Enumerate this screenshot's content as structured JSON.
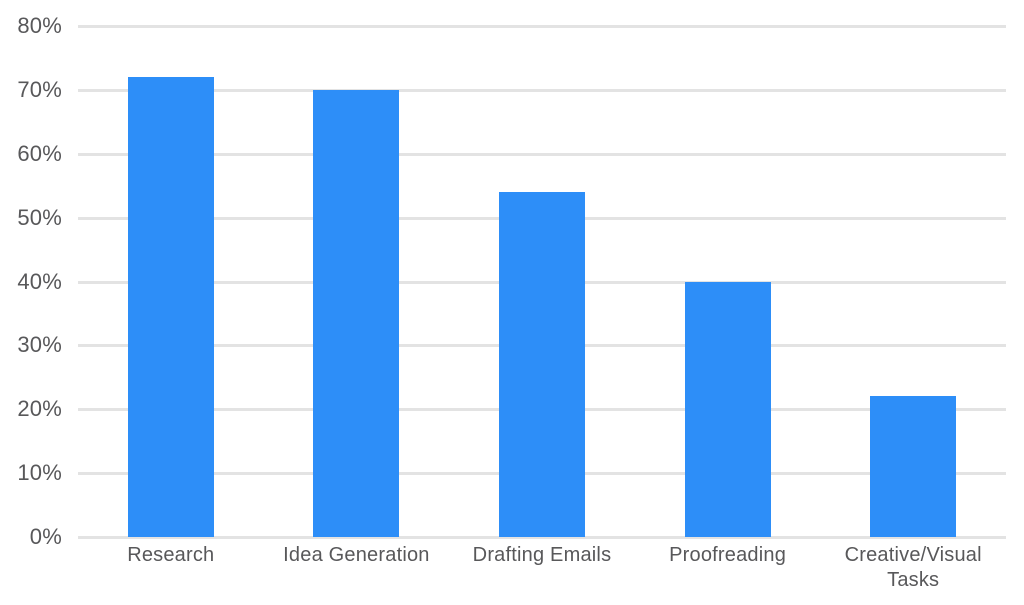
{
  "chart_data": {
    "type": "bar",
    "title": "",
    "xlabel": "",
    "ylabel": "",
    "categories": [
      "Research",
      "Idea Generation",
      "Drafting Emails",
      "Proofreading",
      "Creative/Visual Tasks"
    ],
    "values": [
      72,
      70,
      54,
      40,
      22
    ],
    "value_unit": "%",
    "ylim": [
      0,
      80
    ],
    "ytick_step": 10,
    "ytick_labels": [
      "0%",
      "10%",
      "20%",
      "30%",
      "40%",
      "50%",
      "60%",
      "70%",
      "80%"
    ],
    "grid": true,
    "legend": "none",
    "colors": {
      "bar": "#2d8ef8",
      "gridline": "#e3e3e3",
      "axis_text": "#58585a",
      "background": "#ffffff"
    }
  }
}
